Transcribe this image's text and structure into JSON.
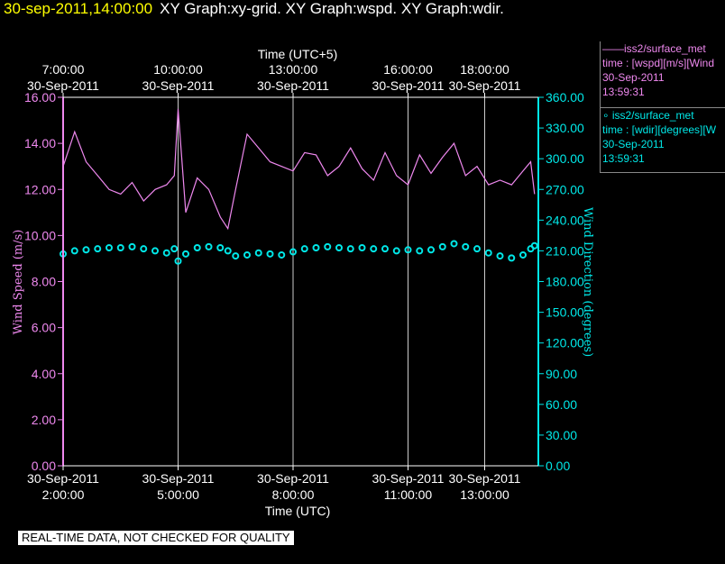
{
  "header": {
    "datetime": "30-sep-2011,14:00:00",
    "graphs": "XY Graph:xy-grid.  XY Graph:wspd.  XY Graph:wdir."
  },
  "legend": {
    "wspd": {
      "line1": "——iss2/surface_met",
      "line2": "time : [wspd][m/s][Wind",
      "line3": "30-Sep-2011",
      "line4": "13:59:31"
    },
    "wdir": {
      "line1": "∘ iss2/surface_met",
      "line2": "time : [wdir][degrees][W",
      "line3": "30-Sep-2011",
      "line4": "13:59:31"
    }
  },
  "footer": {
    "qc_notice": "REAL-TIME DATA, NOT CHECKED FOR QUALITY"
  },
  "colors": {
    "wspd": "#ee88ee",
    "wdir": "#00e8e8",
    "grid": "#cccccc",
    "title": "#ffff00"
  },
  "chart_data": {
    "type": "line",
    "xlabel": "Time (UTC)",
    "x2label": "Time (UTC+5)",
    "ylabel": "Wind Speed (m/s)",
    "y2label": "Wind Direction (degrees)",
    "xlim_hours_utc": [
      2.0,
      14.4
    ],
    "ylim": [
      0,
      16
    ],
    "y2lim": [
      0,
      360
    ],
    "yticks": [
      "0.00",
      "2.00",
      "4.00",
      "6.00",
      "8.00",
      "10.00",
      "12.00",
      "14.00",
      "16.00"
    ],
    "y2ticks": [
      "0.00",
      "30.00",
      "60.00",
      "90.00",
      "120.00",
      "150.00",
      "180.00",
      "210.00",
      "240.00",
      "270.00",
      "300.00",
      "330.00",
      "360.00"
    ],
    "bottom_ticks": [
      {
        "hour": 2.0,
        "date": "30-Sep-2011",
        "time": "2:00:00"
      },
      {
        "hour": 5.0,
        "date": "30-Sep-2011",
        "time": "5:00:00"
      },
      {
        "hour": 8.0,
        "date": "30-Sep-2011",
        "time": "8:00:00"
      },
      {
        "hour": 11.0,
        "date": "30-Sep-2011",
        "time": "11:00:00"
      },
      {
        "hour": 13.0,
        "date": "30-Sep-2011",
        "time": "13:00:00"
      }
    ],
    "top_ticks": [
      {
        "hour": 2.0,
        "date": "30-Sep-2011",
        "time": "7:00:00"
      },
      {
        "hour": 5.0,
        "date": "30-Sep-2011",
        "time": "10:00:00"
      },
      {
        "hour": 8.0,
        "date": "30-Sep-2011",
        "time": "13:00:00"
      },
      {
        "hour": 11.0,
        "date": "30-Sep-2011",
        "time": "16:00:00"
      },
      {
        "hour": 13.0,
        "date": "30-Sep-2011",
        "time": "18:00:00"
      }
    ],
    "grid_hours": [
      5.0,
      8.0,
      11.0,
      13.0
    ],
    "series": [
      {
        "name": "iss2/surface_met wspd",
        "style": "line",
        "hours": [
          2.0,
          2.3,
          2.6,
          2.9,
          3.2,
          3.5,
          3.8,
          4.1,
          4.4,
          4.7,
          4.9,
          5.0,
          5.2,
          5.5,
          5.8,
          6.1,
          6.3,
          6.5,
          6.8,
          7.1,
          7.4,
          7.7,
          8.0,
          8.3,
          8.6,
          8.9,
          9.2,
          9.5,
          9.8,
          10.1,
          10.4,
          10.7,
          11.0,
          11.3,
          11.6,
          11.9,
          12.2,
          12.5,
          12.8,
          13.1,
          13.4,
          13.7,
          14.0,
          14.2,
          14.3
        ],
        "values": [
          13.0,
          14.5,
          13.2,
          12.6,
          12.0,
          11.8,
          12.3,
          11.5,
          12.0,
          12.2,
          12.6,
          15.5,
          11.0,
          12.5,
          12.0,
          10.8,
          10.3,
          12.0,
          14.4,
          13.8,
          13.2,
          13.0,
          12.8,
          13.6,
          13.5,
          12.6,
          13.0,
          13.8,
          12.9,
          12.4,
          13.6,
          12.6,
          12.2,
          13.5,
          12.7,
          13.4,
          14.0,
          12.6,
          13.0,
          12.2,
          12.4,
          12.2,
          12.8,
          13.2,
          11.8
        ]
      },
      {
        "name": "iss2/surface_met wdir",
        "style": "points",
        "hours": [
          2.0,
          2.3,
          2.6,
          2.9,
          3.2,
          3.5,
          3.8,
          4.1,
          4.4,
          4.7,
          4.9,
          5.0,
          5.2,
          5.5,
          5.8,
          6.1,
          6.3,
          6.5,
          6.8,
          7.1,
          7.4,
          7.7,
          8.0,
          8.3,
          8.6,
          8.9,
          9.2,
          9.5,
          9.8,
          10.1,
          10.4,
          10.7,
          11.0,
          11.3,
          11.6,
          11.9,
          12.2,
          12.5,
          12.8,
          13.1,
          13.4,
          13.7,
          14.0,
          14.2,
          14.3
        ],
        "values": [
          207,
          210,
          211,
          212,
          213,
          213,
          214,
          212,
          210,
          208,
          212,
          200,
          207,
          213,
          214,
          213,
          210,
          205,
          206,
          208,
          207,
          206,
          209,
          212,
          213,
          214,
          213,
          212,
          213,
          212,
          212,
          210,
          211,
          210,
          211,
          214,
          217,
          214,
          212,
          208,
          205,
          203,
          206,
          212,
          215
        ]
      }
    ]
  }
}
